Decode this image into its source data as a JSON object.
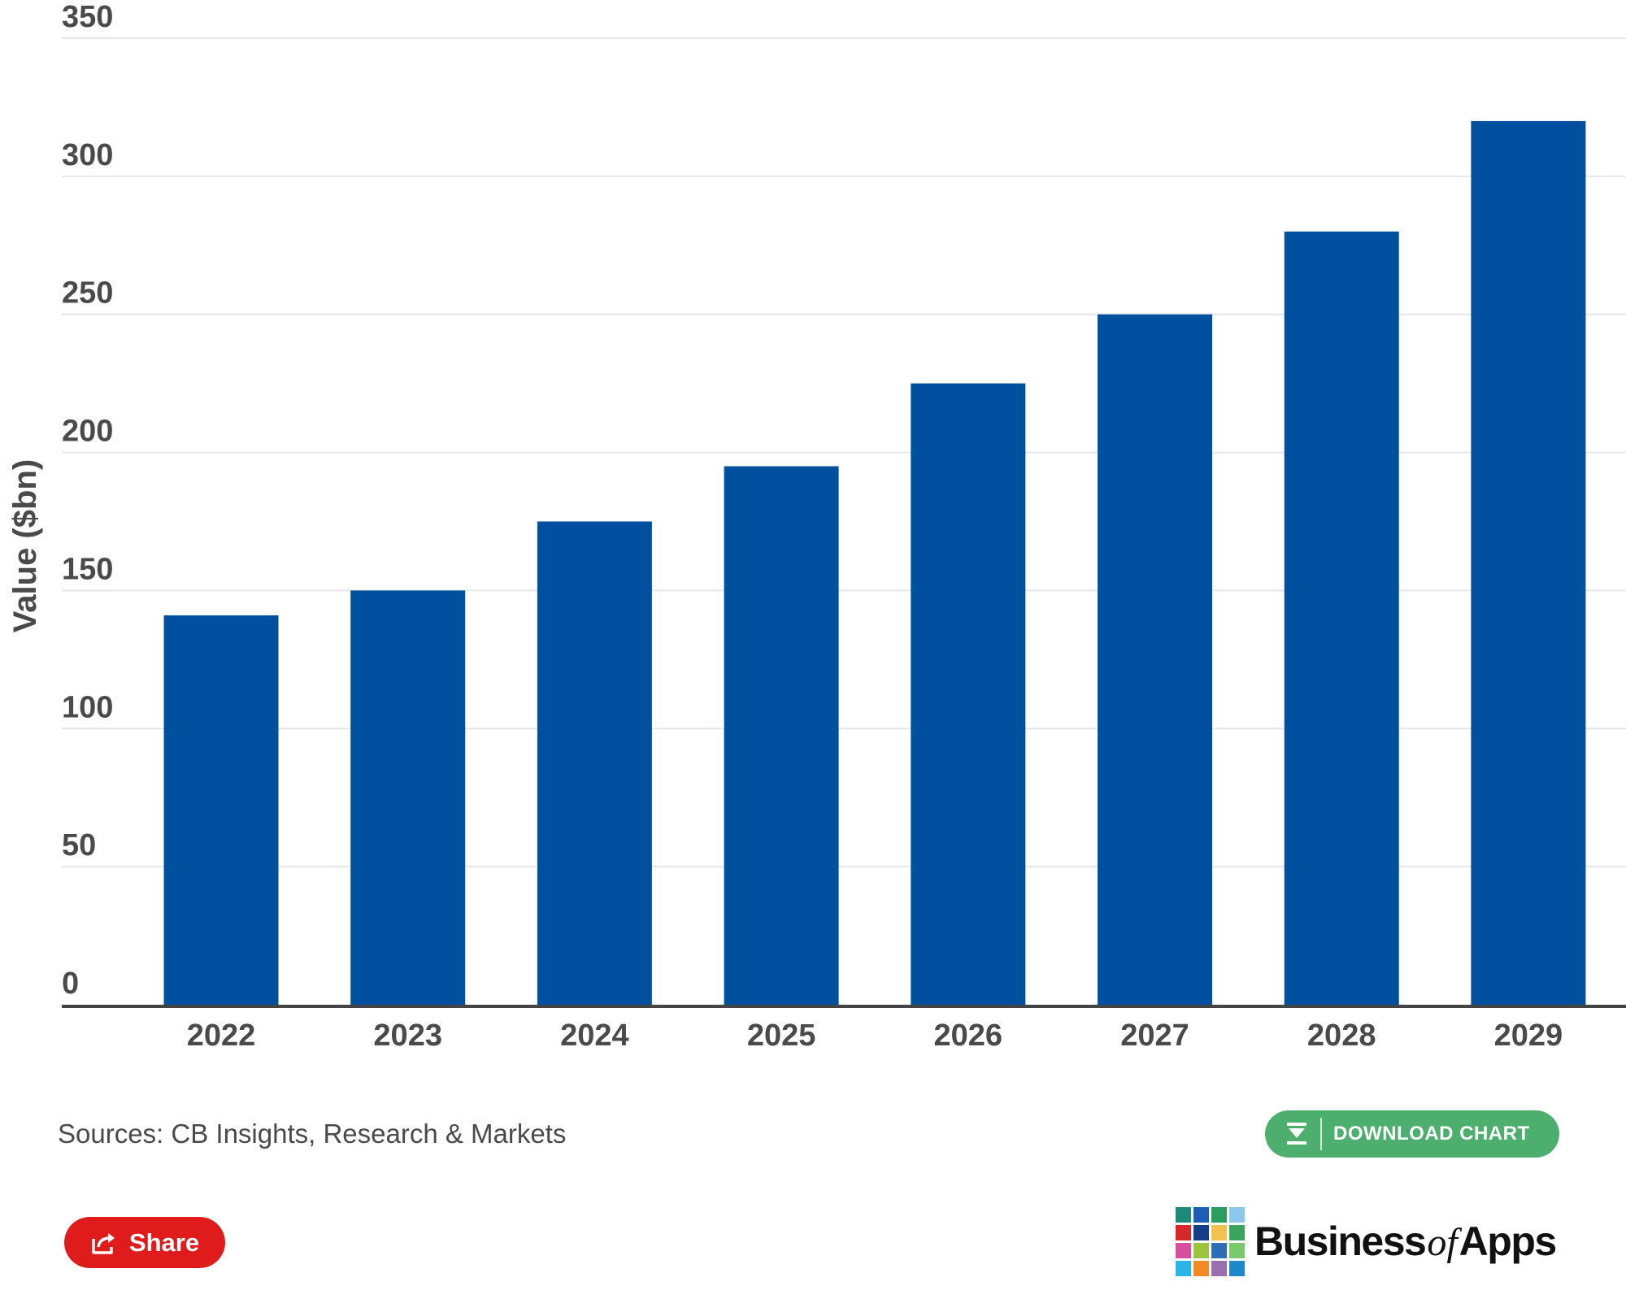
{
  "chart_data": {
    "type": "bar",
    "categories": [
      "2022",
      "2023",
      "2024",
      "2025",
      "2026",
      "2027",
      "2028",
      "2029"
    ],
    "values": [
      141,
      150,
      175,
      195,
      225,
      250,
      280,
      320
    ],
    "title": "",
    "xlabel": "",
    "ylabel": "Value ($bn)",
    "ylim": [
      0,
      350
    ],
    "yticks": [
      0,
      50,
      100,
      150,
      200,
      250,
      300,
      350
    ],
    "grid": true,
    "legend": "none",
    "bar_color": "#0050a0"
  },
  "footer": {
    "sources": "Sources: CB Insights, Research & Markets",
    "download_label": "DOWNLOAD CHART",
    "download_color": "#4caf6e",
    "share_label": "Share",
    "share_color": "#e01b1b"
  },
  "logo": {
    "text_main": "Business",
    "text_of": "of",
    "text_end": "Apps",
    "grid_colors": [
      "#1b8a7a",
      "#1a5fb4",
      "#2a9d5c",
      "#8ec8e8",
      "#d62828",
      "#123f87",
      "#f2c14e",
      "#3ba55c",
      "#d94fa0",
      "#9bc53d",
      "#2f6db5",
      "#7bc96f",
      "#2bb5e6",
      "#f08a24",
      "#9a6fb0",
      "#1e88c8"
    ]
  }
}
